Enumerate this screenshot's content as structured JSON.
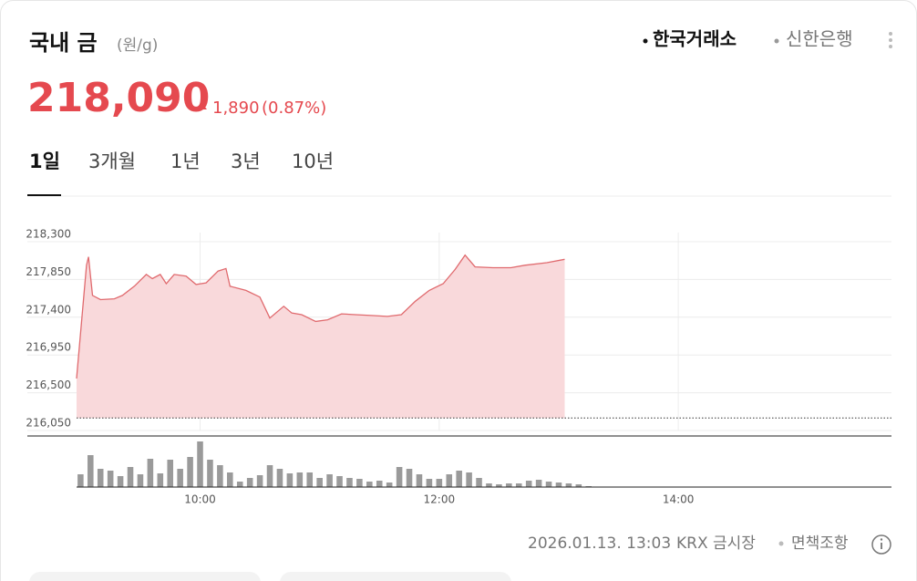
{
  "header": {
    "title": "국내 금",
    "unit": "(원/g)",
    "sources": [
      "한국거래소",
      "신한은행"
    ],
    "price": "218,090",
    "change": "1,890",
    "change_pct": "(0.87%)"
  },
  "tabs": [
    "1일",
    "3개월",
    "1년",
    "3년",
    "10년"
  ],
  "chart_data": [
    {
      "type": "area",
      "color": "#e06a6e",
      "fill": "#f9d9db",
      "reference_line": 216200,
      "x": [
        538,
        543,
        544,
        546,
        550,
        557,
        561,
        567,
        573,
        576,
        580,
        583,
        587,
        593,
        598,
        603,
        609,
        613,
        615,
        623,
        630,
        635,
        642,
        646,
        651,
        658,
        664,
        671,
        678,
        687,
        694,
        701,
        708,
        715,
        722,
        728,
        733,
        738,
        747,
        756,
        763,
        774,
        783
      ],
      "values": [
        216670,
        218020,
        218120,
        217660,
        217610,
        217620,
        217660,
        217770,
        217910,
        217860,
        217910,
        217800,
        217910,
        217890,
        217790,
        217810,
        217950,
        217980,
        217770,
        217720,
        217640,
        217390,
        217530,
        217450,
        217430,
        217350,
        217370,
        217440,
        217430,
        217420,
        217410,
        217430,
        217590,
        217720,
        217800,
        217970,
        218140,
        218000,
        217990,
        217990,
        218020,
        218050,
        218090
      ],
      "xlim": [
        538,
        947
      ],
      "ylim": [
        216050,
        218300
      ],
      "yticks": [
        {
          "value": 216050,
          "label": "216,050"
        },
        {
          "value": 216500,
          "label": "216,500"
        },
        {
          "value": 216950,
          "label": "216,950"
        },
        {
          "value": 217400,
          "label": "217,400"
        },
        {
          "value": 217850,
          "label": "217,850"
        },
        {
          "value": 218300,
          "label": "218,300"
        }
      ],
      "xticks": [
        {
          "value": 600,
          "label": "10:00"
        },
        {
          "value": 720,
          "label": "12:00"
        },
        {
          "value": 840,
          "label": "14:00"
        }
      ],
      "grid": true
    },
    {
      "type": "bar",
      "color": "#9a9a9a",
      "xlim": [
        538,
        947
      ],
      "ylim": [
        0,
        50
      ],
      "x": [
        540,
        545,
        550,
        555,
        560,
        565,
        570,
        575,
        580,
        585,
        590,
        595,
        600,
        605,
        610,
        615,
        620,
        625,
        630,
        635,
        640,
        645,
        650,
        655,
        660,
        665,
        670,
        675,
        680,
        685,
        690,
        695,
        700,
        705,
        710,
        715,
        720,
        725,
        730,
        735,
        740,
        745,
        750,
        755,
        760,
        765,
        770,
        775,
        780,
        785,
        790,
        795
      ],
      "values": [
        14,
        35,
        20,
        18,
        12,
        22,
        14,
        31,
        15,
        30,
        20,
        33,
        50,
        30,
        24,
        16,
        6,
        10,
        13,
        24,
        20,
        15,
        16,
        16,
        10,
        14,
        12,
        10,
        9,
        6,
        7,
        5,
        22,
        20,
        14,
        9,
        9,
        14,
        18,
        16,
        10,
        4,
        3,
        4,
        4,
        7,
        8,
        6,
        5,
        4,
        3,
        1
      ]
    }
  ],
  "footer": {
    "date": "2026.01.13. 13:03",
    "market": "KRX 금시장",
    "disclaimer": "면책조항"
  }
}
